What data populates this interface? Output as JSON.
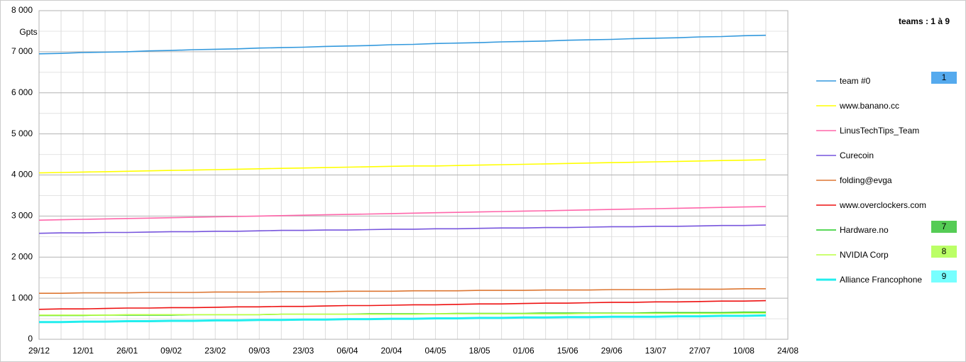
{
  "chart_data": {
    "type": "line",
    "y_unit": "Gpts",
    "legend_title": "teams : 1 à 9",
    "categories": [
      "29/12",
      null,
      "12/01",
      null,
      "26/01",
      null,
      "09/02",
      null,
      "23/02",
      null,
      "09/03",
      null,
      "23/03",
      null,
      "06/04",
      null,
      "20/04",
      null,
      "04/05",
      null,
      "18/05",
      null,
      "01/06",
      null,
      "15/06",
      null,
      "29/06",
      null,
      "13/07",
      null,
      "27/07",
      null,
      "10/08",
      null,
      "24/08"
    ],
    "ylim": [
      0,
      8000
    ],
    "yticks": [
      0,
      {
        "value": 1000,
        "label": "1 000"
      },
      {
        "value": 2000,
        "label": "2 000"
      },
      {
        "value": 3000,
        "label": "3 000"
      },
      {
        "value": 4000,
        "label": "4 000"
      },
      {
        "value": 5000,
        "label": "5 000"
      },
      {
        "value": 6000,
        "label": "6 000"
      },
      {
        "value": 7000,
        "label": "7 000"
      },
      {
        "value": 8000,
        "label": "8 000"
      }
    ],
    "grid": true,
    "legend": "right",
    "series": [
      {
        "name": "team #0",
        "color": "#3399dd",
        "badge": "1",
        "badge_color": "#55aaee",
        "values": [
          6950,
          6960,
          6980,
          6990,
          7000,
          7020,
          7030,
          7050,
          7060,
          7070,
          7090,
          7100,
          7110,
          7130,
          7140,
          7150,
          7170,
          7180,
          7200,
          7210,
          7220,
          7240,
          7250,
          7260,
          7280,
          7290,
          7300,
          7320,
          7330,
          7340,
          7360,
          7370,
          7390,
          7400,
          null
        ]
      },
      {
        "name": "www.banano.cc",
        "color": "#ffff00",
        "values": [
          4050,
          4060,
          4070,
          4080,
          4090,
          4100,
          4110,
          4120,
          4130,
          4140,
          4150,
          4160,
          4170,
          4180,
          4190,
          4200,
          4210,
          4220,
          4220,
          4230,
          4240,
          4250,
          4260,
          4270,
          4280,
          4290,
          4300,
          4310,
          4320,
          4330,
          4340,
          4350,
          4360,
          4370,
          null
        ]
      },
      {
        "name": "LinusTechTips_Team",
        "color": "#ff66aa",
        "values": [
          2900,
          2910,
          2920,
          2930,
          2940,
          2950,
          2960,
          2970,
          2980,
          2990,
          3000,
          3010,
          3020,
          3030,
          3040,
          3050,
          3060,
          3070,
          3080,
          3090,
          3100,
          3110,
          3120,
          3130,
          3140,
          3150,
          3160,
          3170,
          3180,
          3190,
          3200,
          3210,
          3220,
          3230,
          null
        ]
      },
      {
        "name": "Curecoin",
        "color": "#7755dd",
        "values": [
          2580,
          2590,
          2590,
          2600,
          2600,
          2610,
          2620,
          2620,
          2630,
          2630,
          2640,
          2650,
          2650,
          2660,
          2660,
          2670,
          2680,
          2680,
          2690,
          2690,
          2700,
          2710,
          2710,
          2720,
          2720,
          2730,
          2740,
          2740,
          2750,
          2750,
          2760,
          2770,
          2770,
          2780,
          null
        ]
      },
      {
        "name": "folding@evga",
        "color": "#dd7733",
        "values": [
          1120,
          1120,
          1130,
          1130,
          1130,
          1140,
          1140,
          1140,
          1150,
          1150,
          1150,
          1160,
          1160,
          1160,
          1170,
          1170,
          1170,
          1180,
          1180,
          1180,
          1190,
          1190,
          1190,
          1200,
          1200,
          1200,
          1210,
          1210,
          1210,
          1220,
          1220,
          1220,
          1230,
          1230,
          null
        ]
      },
      {
        "name": "www.overclockers.com",
        "color": "#ee1111",
        "values": [
          730,
          740,
          740,
          750,
          760,
          760,
          770,
          770,
          780,
          790,
          790,
          800,
          800,
          810,
          820,
          820,
          830,
          840,
          840,
          850,
          860,
          860,
          870,
          880,
          880,
          890,
          900,
          900,
          910,
          910,
          920,
          930,
          930,
          940,
          null
        ]
      },
      {
        "name": "Hardware.no",
        "color": "#22cc22",
        "badge": "7",
        "badge_color": "#55cc55",
        "values": [
          580,
          580,
          580,
          590,
          590,
          590,
          590,
          600,
          600,
          600,
          600,
          610,
          610,
          610,
          610,
          620,
          620,
          620,
          620,
          630,
          630,
          630,
          630,
          640,
          640,
          640,
          640,
          640,
          650,
          650,
          650,
          650,
          660,
          660,
          null
        ]
      },
      {
        "name": "NVIDIA Corp",
        "color": "#bbff44",
        "badge": "8",
        "badge_color": "#bbff66",
        "values": [
          590,
          590,
          590,
          590,
          600,
          600,
          600,
          600,
          600,
          600,
          600,
          610,
          610,
          610,
          610,
          610,
          610,
          610,
          620,
          620,
          620,
          620,
          620,
          620,
          620,
          630,
          630,
          630,
          630,
          630,
          630,
          630,
          640,
          640,
          null
        ]
      },
      {
        "name": "Alliance Francophone",
        "color": "#22eeee",
        "badge": "9",
        "badge_color": "#77ffff",
        "values": [
          420,
          420,
          430,
          430,
          440,
          440,
          450,
          450,
          460,
          460,
          470,
          470,
          480,
          480,
          490,
          490,
          500,
          500,
          510,
          510,
          520,
          520,
          530,
          530,
          540,
          540,
          550,
          550,
          550,
          560,
          560,
          570,
          570,
          580,
          null
        ]
      }
    ]
  }
}
